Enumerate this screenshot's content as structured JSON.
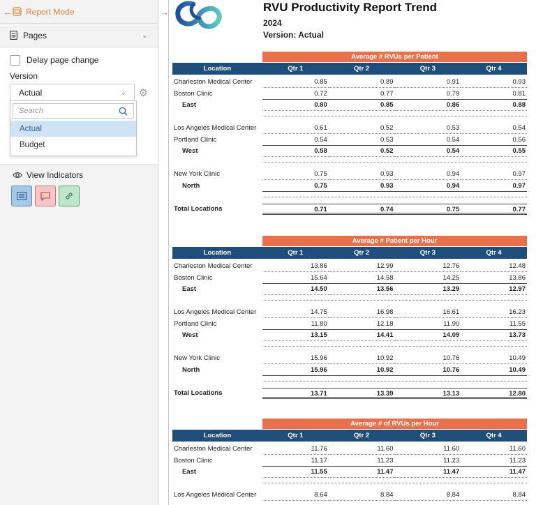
{
  "sidebar": {
    "report_mode_label": "Report Mode",
    "pages_label": "Pages",
    "delay_label": "Delay page change",
    "version_label": "Version",
    "version_value": "Actual",
    "search_placeholder": "Search",
    "options": [
      "Actual",
      "Budget"
    ],
    "view_indicators_label": "View Indicators"
  },
  "report": {
    "title": "RVU Productivity Report Trend",
    "year": "2024",
    "version_line": "Version:  Actual",
    "columns": [
      "Location",
      "Qtr 1",
      "Qtr 2",
      "Qtr 3",
      "Qtr 4"
    ],
    "sections": [
      {
        "title": "Average # RVUs per Patient",
        "rows": [
          {
            "name": "Charleston Medical Center",
            "v": [
              "0.85",
              "0.89",
              "0.91",
              "0.93"
            ]
          },
          {
            "name": "Boston Clinic",
            "v": [
              "0.72",
              "0.77",
              "0.79",
              "0.81"
            ]
          },
          {
            "name": "East",
            "v": [
              "0.80",
              "0.85",
              "0.86",
              "0.88"
            ]
          },
          {
            "name": "Los Angeles Medical Center",
            "v": [
              "0.61",
              "0.52",
              "0.53",
              "0.54"
            ]
          },
          {
            "name": "Portland Clinic",
            "v": [
              "0.54",
              "0.53",
              "0.54",
              "0.56"
            ]
          },
          {
            "name": "West",
            "v": [
              "0.58",
              "0.52",
              "0.54",
              "0.55"
            ]
          },
          {
            "name": "New York Clinic",
            "v": [
              "0.75",
              "0.93",
              "0.94",
              "0.97"
            ]
          },
          {
            "name": "North",
            "v": [
              "0.75",
              "0.93",
              "0.94",
              "0.97"
            ]
          },
          {
            "name": "Total Locations",
            "v": [
              "0.71",
              "0.74",
              "0.75",
              "0.77"
            ]
          }
        ]
      },
      {
        "title": "Average # Patient per Hour",
        "rows": [
          {
            "name": "Charleston Medical Center",
            "v": [
              "13.86",
              "12.99",
              "12.76",
              "12.48"
            ]
          },
          {
            "name": "Boston Clinic",
            "v": [
              "15.64",
              "14.58",
              "14.25",
              "13.86"
            ]
          },
          {
            "name": "East",
            "v": [
              "14.50",
              "13.56",
              "13.29",
              "12.97"
            ]
          },
          {
            "name": "Los Angeles Medical Center",
            "v": [
              "14.75",
              "16.98",
              "16.61",
              "16.23"
            ]
          },
          {
            "name": "Portland Clinic",
            "v": [
              "11.80",
              "12.18",
              "11.90",
              "11.55"
            ]
          },
          {
            "name": "West",
            "v": [
              "13.15",
              "14.41",
              "14.09",
              "13.73"
            ]
          },
          {
            "name": "New York Clinic",
            "v": [
              "15.96",
              "10.92",
              "10.76",
              "10.49"
            ]
          },
          {
            "name": "North",
            "v": [
              "15.96",
              "10.92",
              "10.76",
              "10.49"
            ]
          },
          {
            "name": "Total Locations",
            "v": [
              "13.71",
              "13.39",
              "13.13",
              "12.80"
            ]
          }
        ]
      },
      {
        "title": "Average # of RVUs per Hour",
        "rows": [
          {
            "name": "Charleston Medical Center",
            "v": [
              "11.76",
              "11.60",
              "11.60",
              "11.60"
            ]
          },
          {
            "name": "Boston Clinic",
            "v": [
              "11.17",
              "11.23",
              "11.23",
              "11.23"
            ]
          },
          {
            "name": "East",
            "v": [
              "11.55",
              "11.47",
              "11.47",
              "11.47"
            ]
          },
          {
            "name": "Los Angeles Medical Center",
            "v": [
              "8.64",
              "8.84",
              "8.84",
              "8.84"
            ]
          }
        ]
      }
    ]
  }
}
